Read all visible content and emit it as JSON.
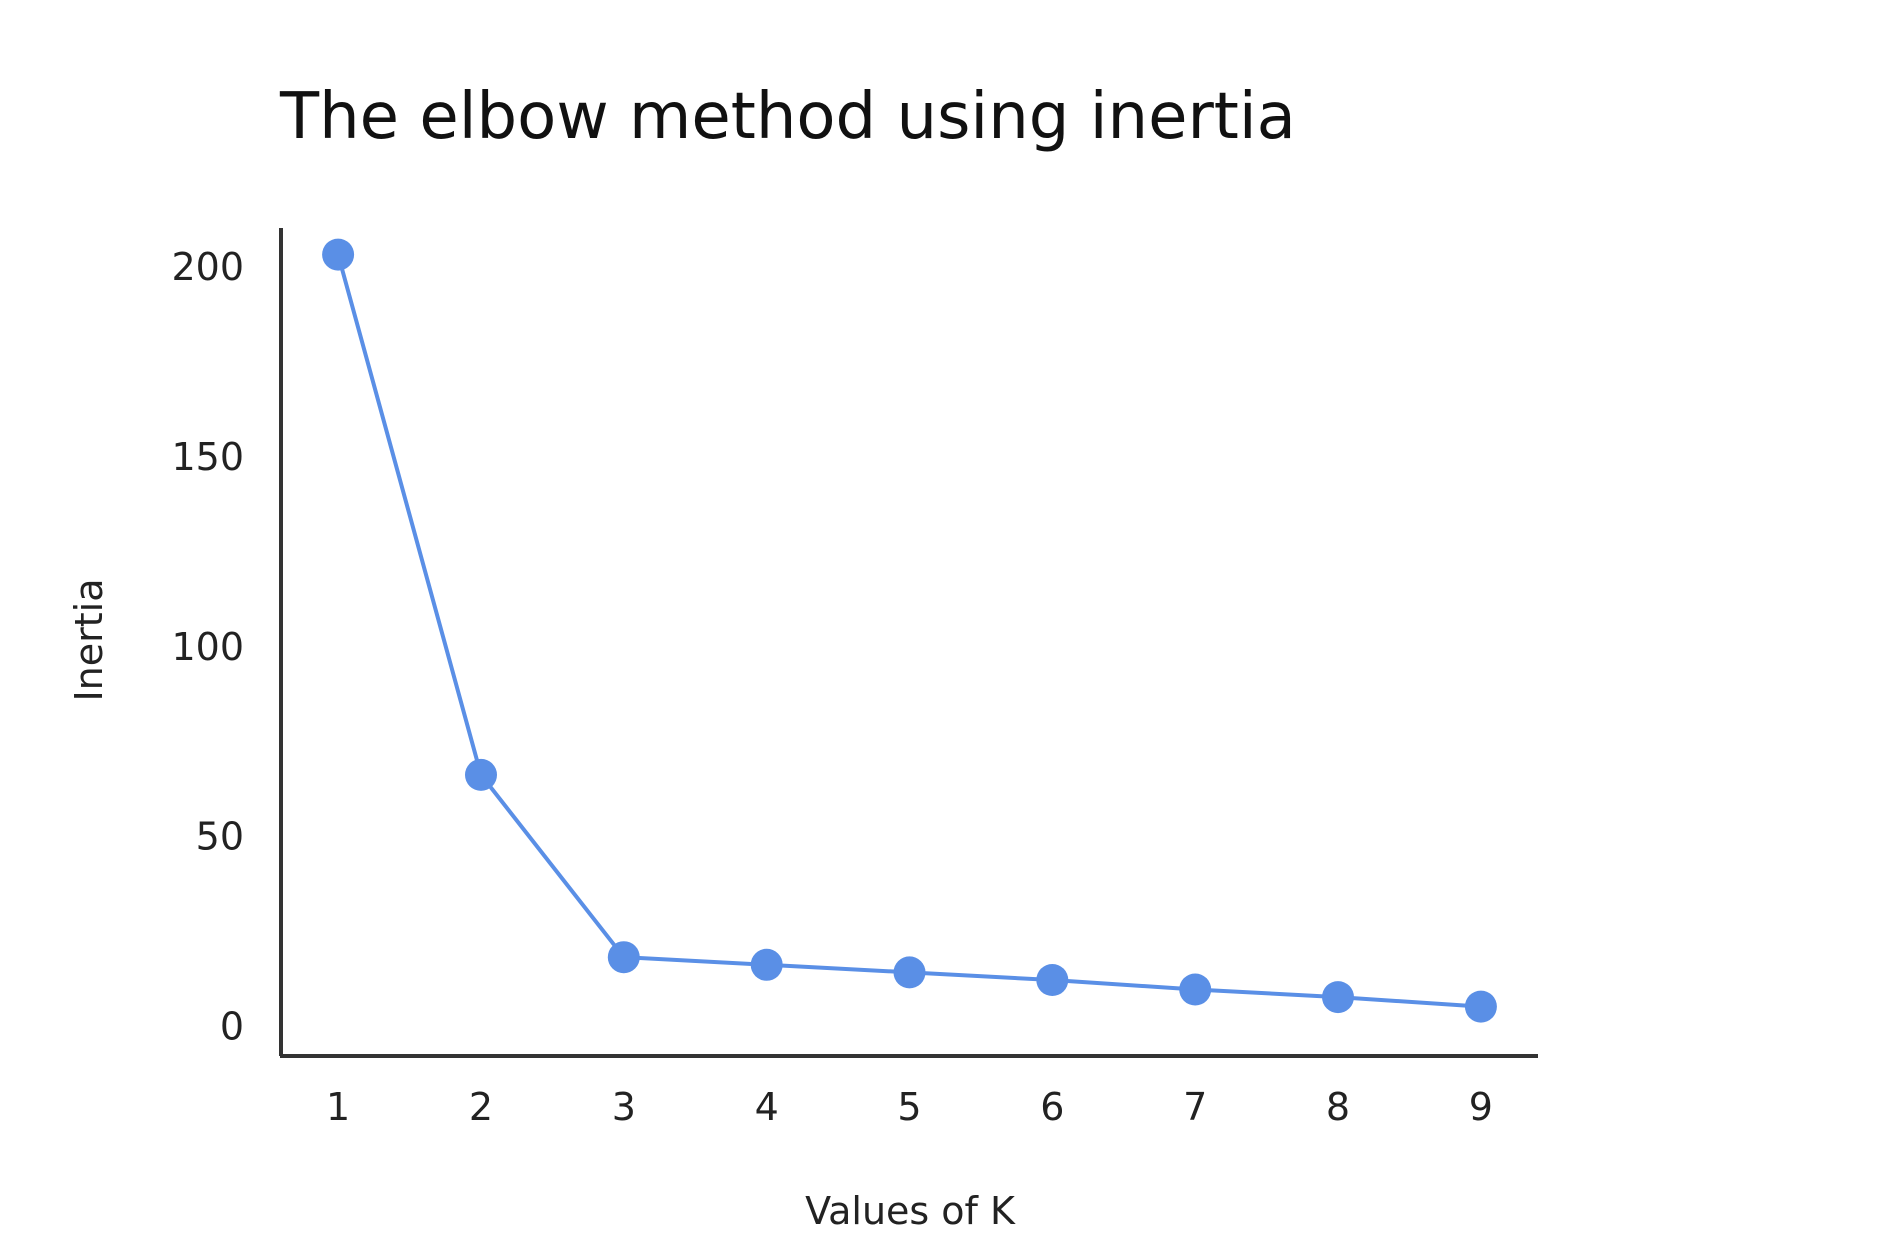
{
  "chart_data": {
    "type": "line",
    "title": "The elbow method using inertia",
    "xlabel": "Values of K",
    "ylabel": "Inertia",
    "x": [
      1,
      2,
      3,
      4,
      5,
      6,
      7,
      8,
      9
    ],
    "x_tick_labels": [
      "1",
      "2",
      "3",
      "4",
      "5",
      "6",
      "7",
      "8",
      "9"
    ],
    "y_ticks": [
      0,
      50,
      100,
      150,
      200
    ],
    "y_tick_labels": [
      "0",
      "50",
      "100",
      "150",
      "200"
    ],
    "ylim": [
      -8,
      210
    ],
    "xlim": [
      0.6,
      9.4
    ],
    "grid": false,
    "series": [
      {
        "values": [
          203,
          66,
          18,
          16,
          14,
          12,
          9.5,
          7.5,
          5
        ]
      }
    ],
    "colors": {
      "line": "#5a8fe6",
      "marker": "#5a8fe6",
      "axis": "#333333"
    }
  }
}
